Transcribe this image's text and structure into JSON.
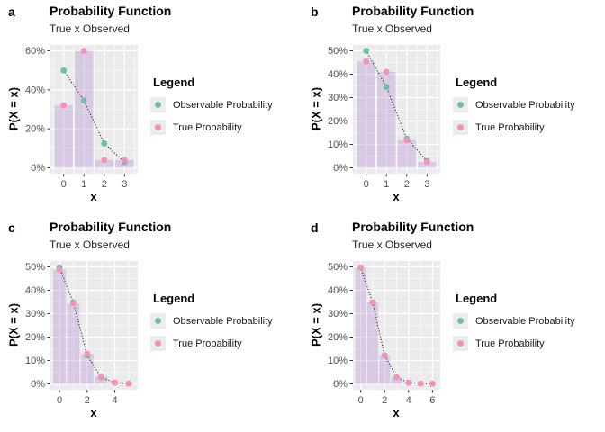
{
  "colors": {
    "observable": "#6FBEA9",
    "true_probability": "#F791B9",
    "bar_fill": "rgba(160,115,200,0.28)",
    "panel_bg": "#EBEBEB",
    "grid": "#FFFFFF",
    "tick_text": "#4D4D4D",
    "tick_mark": "#333333",
    "dotted_line": "#000000"
  },
  "legend": {
    "title": "Legend",
    "position": "right",
    "items": [
      {
        "label": "Observable Probability",
        "color_key": "observable"
      },
      {
        "label": "True Probability",
        "color_key": "true_probability"
      }
    ]
  },
  "chart_data": [
    {
      "type": "bar",
      "tag": "a",
      "title": "Probability Function",
      "subtitle": "True x Observed",
      "xlabel": "x",
      "ylabel": "P(X = x)",
      "x": [
        0,
        1,
        2,
        3
      ],
      "x_ticks": [
        0,
        1,
        2,
        3
      ],
      "x_minor": [
        -0.5,
        0.5,
        1.5,
        2.5,
        3.5
      ],
      "y_ticks": [
        0,
        20,
        40,
        60
      ],
      "y_minor": [
        10,
        30,
        50
      ],
      "ymax": 60,
      "ylim": [
        0,
        60
      ],
      "grid": true,
      "bars": [
        32,
        60,
        4,
        4
      ],
      "dotted_line_through": "Observable Probability",
      "series": [
        {
          "name": "Observable Probability",
          "values": [
            50,
            34.5,
            12.5,
            2.9
          ]
        },
        {
          "name": "True Probability",
          "values": [
            32,
            60,
            4,
            4
          ]
        }
      ]
    },
    {
      "type": "bar",
      "tag": "b",
      "title": "Probability Function",
      "subtitle": "True x Observed",
      "xlabel": "x",
      "ylabel": "P(X = x)",
      "x": [
        0,
        1,
        2,
        3
      ],
      "x_ticks": [
        0,
        1,
        2,
        3
      ],
      "x_minor": [
        -0.5,
        0.5,
        1.5,
        2.5,
        3.5
      ],
      "y_ticks": [
        0,
        10,
        20,
        30,
        40,
        50
      ],
      "y_minor": [
        5,
        15,
        25,
        35,
        45
      ],
      "ymax": 50,
      "ylim": [
        0,
        50
      ],
      "grid": true,
      "bars": [
        45.5,
        41,
        11.8,
        2.5
      ],
      "dotted_line_through": "Observable Probability",
      "series": [
        {
          "name": "Observable Probability",
          "values": [
            50,
            34.5,
            12.5,
            2.9
          ]
        },
        {
          "name": "True Probability",
          "values": [
            45.5,
            41,
            11.8,
            2.5
          ]
        }
      ]
    },
    {
      "type": "bar",
      "tag": "c",
      "title": "Probability Function",
      "subtitle": "True x Observed",
      "xlabel": "x",
      "ylabel": "P(X = x)",
      "x": [
        0,
        1,
        2,
        3,
        4,
        5
      ],
      "x_ticks": [
        0,
        2,
        4
      ],
      "x_minor": [
        1,
        3,
        5
      ],
      "y_ticks": [
        0,
        10,
        20,
        30,
        40,
        50
      ],
      "y_minor": [
        5,
        15,
        25,
        35,
        45
      ],
      "ymax": 50,
      "ylim": [
        0,
        50
      ],
      "grid": true,
      "bars": [
        48.8,
        34.4,
        12.9,
        3.1,
        0.6,
        0.15
      ],
      "dotted_line_through": "Observable Probability",
      "series": [
        {
          "name": "Observable Probability",
          "values": [
            49.7,
            34.8,
            12.2,
            2.8,
            0.5,
            0.1
          ]
        },
        {
          "name": "True Probability",
          "values": [
            48.8,
            34.4,
            12.9,
            3.1,
            0.6,
            0.15
          ]
        }
      ]
    },
    {
      "type": "bar",
      "tag": "d",
      "title": "Probability Function",
      "subtitle": "True x Observed",
      "xlabel": "x",
      "ylabel": "P(X = x)",
      "x": [
        0,
        1,
        2,
        3,
        4,
        5,
        6
      ],
      "x_ticks": [
        0,
        2,
        4,
        6
      ],
      "x_minor": [
        1,
        3,
        5
      ],
      "y_ticks": [
        0,
        10,
        20,
        30,
        40,
        50
      ],
      "y_minor": [
        5,
        15,
        25,
        35,
        45
      ],
      "ymax": 50,
      "ylim": [
        0,
        50
      ],
      "grid": true,
      "bars": [
        49.7,
        34.8,
        12.2,
        2.8,
        0.5,
        0.1,
        0.05
      ],
      "dotted_line_through": "Observable Probability",
      "series": [
        {
          "name": "Observable Probability",
          "values": [
            49.7,
            34.8,
            12.2,
            2.8,
            0.5,
            0.1,
            0.05
          ]
        },
        {
          "name": "True Probability",
          "values": [
            49.7,
            34.8,
            12.2,
            2.8,
            0.5,
            0.1,
            0.05
          ]
        }
      ]
    }
  ]
}
